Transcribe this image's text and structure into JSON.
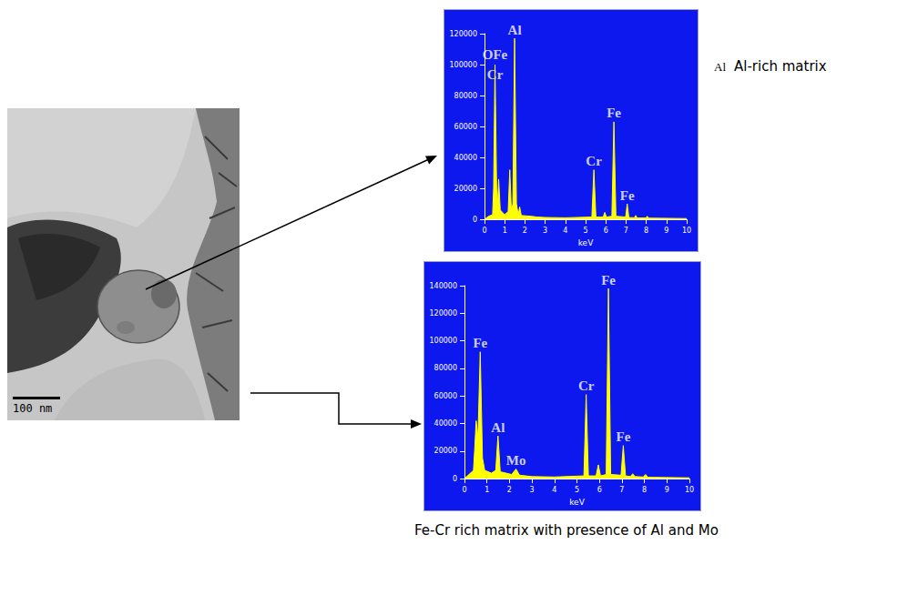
{
  "micrograph": {
    "scale_bar": "100 nm"
  },
  "captions": {
    "top_marker": "Al",
    "top": "Al-rich matrix",
    "bottom": "Fe-Cr rich matrix with presence of Al and Mo"
  },
  "chart_data": [
    {
      "type": "line",
      "xlabel": "keV",
      "color": "#ffff00",
      "grid": false,
      "xlim": [
        0,
        10
      ],
      "xticks": [
        0,
        1,
        2,
        3,
        4,
        5,
        6,
        7,
        8,
        9,
        10
      ],
      "ylim": [
        0,
        120000
      ],
      "yticks": [
        0,
        20000,
        40000,
        60000,
        80000,
        100000,
        120000
      ],
      "x": [
        0,
        0.2,
        0.4,
        0.45,
        0.52,
        0.6,
        0.64,
        0.7,
        0.78,
        1.0,
        1.17,
        1.25,
        1.33,
        1.4,
        1.49,
        1.58,
        1.67,
        1.74,
        1.82,
        2.3,
        2.6,
        3.0,
        4.0,
        5.31,
        5.41,
        5.51,
        5.87,
        5.95,
        6.03,
        6.3,
        6.4,
        6.5,
        6.98,
        7.06,
        7.14,
        7.41,
        7.48,
        7.55,
        7.98,
        8.05,
        8.12,
        10
      ],
      "values": [
        0,
        2000,
        3000,
        20000,
        100000,
        20000,
        8000,
        26000,
        6000,
        3000,
        5000,
        32000,
        5000,
        10000,
        117000,
        10000,
        3000,
        8000,
        2500,
        2000,
        1500,
        1200,
        1000,
        1500,
        32000,
        1500,
        1500,
        4500,
        1500,
        2000,
        63000,
        2000,
        1500,
        10000,
        1200,
        1000,
        2500,
        900,
        900,
        2000,
        800,
        500
      ],
      "annotations": [
        {
          "text": "OFe",
          "x": 0.52,
          "y": 101000
        },
        {
          "text": "Cr",
          "x": 0.52,
          "y": 88000
        },
        {
          "text": "Al",
          "x": 1.49,
          "y": 117000
        },
        {
          "text": "Cr",
          "x": 5.41,
          "y": 32000
        },
        {
          "text": "Fe",
          "x": 6.4,
          "y": 63000
        },
        {
          "text": "Fe",
          "x": 7.06,
          "y": 10000
        }
      ]
    },
    {
      "type": "line",
      "xlabel": "keV",
      "color": "#ffff00",
      "grid": false,
      "xlim": [
        0,
        10
      ],
      "xticks": [
        0,
        1,
        2,
        3,
        4,
        5,
        6,
        7,
        8,
        9,
        10
      ],
      "ylim": [
        0,
        140000
      ],
      "yticks": [
        0,
        20000,
        40000,
        60000,
        80000,
        100000,
        120000,
        140000
      ],
      "x": [
        0,
        0.2,
        0.4,
        0.45,
        0.52,
        0.6,
        0.7,
        0.8,
        0.9,
        1.2,
        1.39,
        1.49,
        1.59,
        2.1,
        2.29,
        2.45,
        3.0,
        4.0,
        5.31,
        5.41,
        5.51,
        5.85,
        5.95,
        6.05,
        6.3,
        6.4,
        6.5,
        6.96,
        7.06,
        7.16,
        7.38,
        7.48,
        7.58,
        7.95,
        8.05,
        8.15,
        10
      ],
      "values": [
        0,
        3000,
        6000,
        20000,
        42000,
        30000,
        92000,
        15000,
        6000,
        4000,
        6000,
        31000,
        5000,
        3000,
        7000,
        2500,
        1500,
        1200,
        2000,
        61000,
        2000,
        2000,
        10000,
        2000,
        3000,
        138000,
        3000,
        2500,
        24000,
        2000,
        1500,
        3500,
        1500,
        1200,
        3000,
        1000,
        600
      ],
      "annotations": [
        {
          "text": "Fe",
          "x": 0.7,
          "y": 92000
        },
        {
          "text": "Al",
          "x": 1.49,
          "y": 31000
        },
        {
          "text": "Mo",
          "x": 2.29,
          "y": 7000
        },
        {
          "text": "Cr",
          "x": 5.41,
          "y": 61000
        },
        {
          "text": "Fe",
          "x": 6.4,
          "y": 138000
        },
        {
          "text": "Fe",
          "x": 7.06,
          "y": 24000
        }
      ]
    }
  ]
}
